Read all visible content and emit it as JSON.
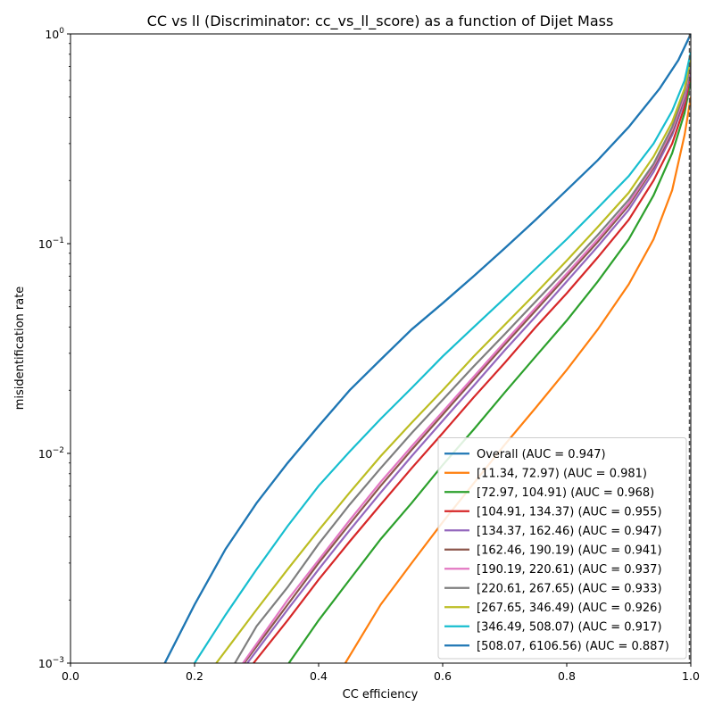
{
  "chart_data": {
    "type": "line",
    "title": "CC vs ll (Discriminator: cc_vs_ll_score) as a function of Dijet Mass",
    "xlabel": "CC efficiency",
    "ylabel": "misidentification rate",
    "xlim": [
      0.0,
      1.0
    ],
    "ylim": [
      0.001,
      1.0
    ],
    "yscale": "log",
    "xticks": [
      {
        "value": 0.0,
        "label": "0.0"
      },
      {
        "value": 0.2,
        "label": "0.2"
      },
      {
        "value": 0.4,
        "label": "0.4"
      },
      {
        "value": 0.6,
        "label": "0.6"
      },
      {
        "value": 0.8,
        "label": "0.8"
      },
      {
        "value": 1.0,
        "label": "1.0"
      }
    ],
    "yticks": [
      {
        "value": 0.001,
        "base": "10",
        "exp": "−3"
      },
      {
        "value": 0.01,
        "base": "10",
        "exp": "−2"
      },
      {
        "value": 0.1,
        "base": "10",
        "exp": "−1"
      },
      {
        "value": 1.0,
        "base": "10",
        "exp": "0"
      }
    ],
    "grid": false,
    "legend_position": "lower-right",
    "reference_line": {
      "x": 1.0,
      "style": "dashed",
      "color": "#555555"
    },
    "series": [
      {
        "name": "Overall (AUC = 0.947)",
        "color": "#1f77b4",
        "points": [
          [
            0.152,
            0.001
          ],
          [
            0.2,
            0.0019
          ],
          [
            0.25,
            0.0035
          ],
          [
            0.3,
            0.0058
          ],
          [
            0.35,
            0.009
          ],
          [
            0.4,
            0.0135
          ],
          [
            0.45,
            0.02
          ],
          [
            0.5,
            0.028
          ],
          [
            0.55,
            0.039
          ],
          [
            0.6,
            0.052
          ],
          [
            0.65,
            0.07
          ],
          [
            0.7,
            0.095
          ],
          [
            0.75,
            0.13
          ],
          [
            0.8,
            0.18
          ],
          [
            0.85,
            0.25
          ],
          [
            0.9,
            0.36
          ],
          [
            0.95,
            0.55
          ],
          [
            0.98,
            0.75
          ],
          [
            1.0,
            1.0
          ]
        ]
      },
      {
        "name": "[11.34, 72.97) (AUC = 0.981)",
        "color": "#ff7f0e",
        "points": [
          [
            0.443,
            0.001
          ],
          [
            0.5,
            0.0019
          ],
          [
            0.55,
            0.003
          ],
          [
            0.6,
            0.0047
          ],
          [
            0.65,
            0.0072
          ],
          [
            0.7,
            0.011
          ],
          [
            0.75,
            0.0165
          ],
          [
            0.8,
            0.025
          ],
          [
            0.85,
            0.039
          ],
          [
            0.9,
            0.064
          ],
          [
            0.94,
            0.105
          ],
          [
            0.97,
            0.18
          ],
          [
            0.99,
            0.33
          ],
          [
            1.0,
            0.5
          ]
        ]
      },
      {
        "name": "[72.97, 104.91) (AUC = 0.968)",
        "color": "#2ca02c",
        "points": [
          [
            0.352,
            0.001
          ],
          [
            0.4,
            0.0016
          ],
          [
            0.45,
            0.0025
          ],
          [
            0.5,
            0.0039
          ],
          [
            0.55,
            0.0058
          ],
          [
            0.6,
            0.0088
          ],
          [
            0.65,
            0.013
          ],
          [
            0.7,
            0.0195
          ],
          [
            0.75,
            0.029
          ],
          [
            0.8,
            0.043
          ],
          [
            0.85,
            0.066
          ],
          [
            0.9,
            0.105
          ],
          [
            0.94,
            0.17
          ],
          [
            0.97,
            0.27
          ],
          [
            0.99,
            0.42
          ],
          [
            1.0,
            0.6
          ]
        ]
      },
      {
        "name": "[104.91, 134.37) (AUC = 0.955)",
        "color": "#d62728",
        "points": [
          [
            0.295,
            0.001
          ],
          [
            0.35,
            0.0016
          ],
          [
            0.4,
            0.0025
          ],
          [
            0.45,
            0.0038
          ],
          [
            0.5,
            0.0057
          ],
          [
            0.55,
            0.0085
          ],
          [
            0.6,
            0.0125
          ],
          [
            0.65,
            0.0185
          ],
          [
            0.7,
            0.027
          ],
          [
            0.75,
            0.04
          ],
          [
            0.8,
            0.058
          ],
          [
            0.85,
            0.086
          ],
          [
            0.9,
            0.13
          ],
          [
            0.94,
            0.2
          ],
          [
            0.97,
            0.3
          ],
          [
            0.99,
            0.45
          ],
          [
            1.0,
            0.65
          ]
        ]
      },
      {
        "name": "[134.37, 162.46) (AUC = 0.947)",
        "color": "#9467bd",
        "points": [
          [
            0.285,
            0.001
          ],
          [
            0.35,
            0.0018
          ],
          [
            0.4,
            0.0028
          ],
          [
            0.45,
            0.0043
          ],
          [
            0.5,
            0.0065
          ],
          [
            0.55,
            0.0097
          ],
          [
            0.6,
            0.0143
          ],
          [
            0.65,
            0.021
          ],
          [
            0.7,
            0.031
          ],
          [
            0.75,
            0.045
          ],
          [
            0.8,
            0.066
          ],
          [
            0.85,
            0.097
          ],
          [
            0.9,
            0.145
          ],
          [
            0.94,
            0.22
          ],
          [
            0.97,
            0.33
          ],
          [
            0.99,
            0.48
          ],
          [
            1.0,
            0.68
          ]
        ]
      },
      {
        "name": "[162.46, 190.19) (AUC = 0.941)",
        "color": "#8c564b",
        "points": [
          [
            0.28,
            0.001
          ],
          [
            0.35,
            0.0019
          ],
          [
            0.4,
            0.003
          ],
          [
            0.45,
            0.0046
          ],
          [
            0.5,
            0.007
          ],
          [
            0.55,
            0.0104
          ],
          [
            0.6,
            0.0153
          ],
          [
            0.65,
            0.0225
          ],
          [
            0.7,
            0.033
          ],
          [
            0.75,
            0.048
          ],
          [
            0.8,
            0.07
          ],
          [
            0.85,
            0.102
          ],
          [
            0.9,
            0.152
          ],
          [
            0.94,
            0.23
          ],
          [
            0.97,
            0.34
          ],
          [
            0.99,
            0.5
          ],
          [
            1.0,
            0.7
          ]
        ]
      },
      {
        "name": "[190.19, 220.61) (AUC = 0.937)",
        "color": "#e377c2",
        "points": [
          [
            0.278,
            0.001
          ],
          [
            0.35,
            0.002
          ],
          [
            0.4,
            0.0031
          ],
          [
            0.45,
            0.0048
          ],
          [
            0.5,
            0.0073
          ],
          [
            0.55,
            0.0108
          ],
          [
            0.6,
            0.0158
          ],
          [
            0.65,
            0.0232
          ],
          [
            0.7,
            0.034
          ],
          [
            0.75,
            0.0495
          ],
          [
            0.8,
            0.072
          ],
          [
            0.85,
            0.105
          ],
          [
            0.9,
            0.156
          ],
          [
            0.94,
            0.235
          ],
          [
            0.97,
            0.35
          ],
          [
            0.99,
            0.51
          ],
          [
            1.0,
            0.72
          ]
        ]
      },
      {
        "name": "[220.61, 267.65) (AUC = 0.933)",
        "color": "#7f7f7f",
        "points": [
          [
            0.265,
            0.001
          ],
          [
            0.3,
            0.0015
          ],
          [
            0.35,
            0.0023
          ],
          [
            0.4,
            0.0037
          ],
          [
            0.45,
            0.0057
          ],
          [
            0.5,
            0.0085
          ],
          [
            0.55,
            0.0125
          ],
          [
            0.6,
            0.018
          ],
          [
            0.65,
            0.026
          ],
          [
            0.7,
            0.037
          ],
          [
            0.75,
            0.053
          ],
          [
            0.8,
            0.076
          ],
          [
            0.85,
            0.11
          ],
          [
            0.9,
            0.162
          ],
          [
            0.94,
            0.24
          ],
          [
            0.97,
            0.36
          ],
          [
            0.99,
            0.53
          ],
          [
            1.0,
            0.74
          ]
        ]
      },
      {
        "name": "[267.65, 346.49) (AUC = 0.926)",
        "color": "#bcbd22",
        "points": [
          [
            0.235,
            0.001
          ],
          [
            0.3,
            0.0018
          ],
          [
            0.35,
            0.0028
          ],
          [
            0.4,
            0.0043
          ],
          [
            0.45,
            0.0065
          ],
          [
            0.5,
            0.0097
          ],
          [
            0.55,
            0.014
          ],
          [
            0.6,
            0.02
          ],
          [
            0.65,
            0.029
          ],
          [
            0.7,
            0.041
          ],
          [
            0.75,
            0.058
          ],
          [
            0.8,
            0.083
          ],
          [
            0.85,
            0.12
          ],
          [
            0.9,
            0.175
          ],
          [
            0.94,
            0.26
          ],
          [
            0.97,
            0.38
          ],
          [
            0.99,
            0.55
          ],
          [
            1.0,
            0.77
          ]
        ]
      },
      {
        "name": "[346.49, 508.07) (AUC = 0.917)",
        "color": "#17becf",
        "points": [
          [
            0.2,
            0.001
          ],
          [
            0.25,
            0.0017
          ],
          [
            0.3,
            0.0028
          ],
          [
            0.35,
            0.0045
          ],
          [
            0.4,
            0.007
          ],
          [
            0.45,
            0.0102
          ],
          [
            0.5,
            0.0146
          ],
          [
            0.55,
            0.0205
          ],
          [
            0.6,
            0.029
          ],
          [
            0.65,
            0.04
          ],
          [
            0.7,
            0.055
          ],
          [
            0.75,
            0.076
          ],
          [
            0.8,
            0.105
          ],
          [
            0.85,
            0.148
          ],
          [
            0.9,
            0.21
          ],
          [
            0.94,
            0.3
          ],
          [
            0.97,
            0.43
          ],
          [
            0.99,
            0.6
          ],
          [
            1.0,
            0.82
          ]
        ]
      },
      {
        "name": "[508.07, 6106.56) (AUC = 0.887)",
        "color": "#1f77b4",
        "points": [
          [
            0.152,
            0.001
          ],
          [
            0.2,
            0.0019
          ],
          [
            0.25,
            0.0035
          ],
          [
            0.3,
            0.0058
          ],
          [
            0.35,
            0.009
          ],
          [
            0.4,
            0.0135
          ],
          [
            0.45,
            0.02
          ],
          [
            0.5,
            0.028
          ],
          [
            0.55,
            0.039
          ],
          [
            0.6,
            0.052
          ],
          [
            0.65,
            0.07
          ],
          [
            0.7,
            0.095
          ],
          [
            0.75,
            0.13
          ],
          [
            0.8,
            0.18
          ],
          [
            0.85,
            0.25
          ],
          [
            0.9,
            0.36
          ],
          [
            0.95,
            0.55
          ],
          [
            0.98,
            0.75
          ],
          [
            1.0,
            1.0
          ]
        ]
      }
    ]
  }
}
